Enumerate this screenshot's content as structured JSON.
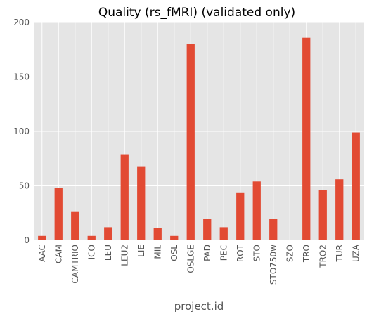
{
  "chart_data": {
    "type": "bar",
    "title": "Quality (rs_fMRI) (validated only)",
    "xlabel": "project.id",
    "ylabel": "",
    "ylim": [
      0,
      200
    ],
    "yticks": [
      0,
      50,
      100,
      150,
      200
    ],
    "grid": true,
    "categories": [
      "AAC",
      "CAM",
      "CAMTRIO",
      "ICO",
      "LEU",
      "LEU2",
      "LIE",
      "MIL",
      "OSL",
      "OSLGE",
      "PAD",
      "PEC",
      "ROT",
      "STO",
      "STO750w",
      "SZO",
      "TRO",
      "TRO2",
      "TUR",
      "UZA"
    ],
    "values": [
      4,
      48,
      26,
      4,
      12,
      79,
      68,
      11,
      4,
      180,
      20,
      12,
      44,
      54,
      20,
      0.5,
      186,
      46,
      56,
      99
    ],
    "colors": {
      "bar": "#E24A33",
      "background": "#E5E5E5",
      "grid": "#FFFFFF",
      "text": "#555555"
    }
  }
}
